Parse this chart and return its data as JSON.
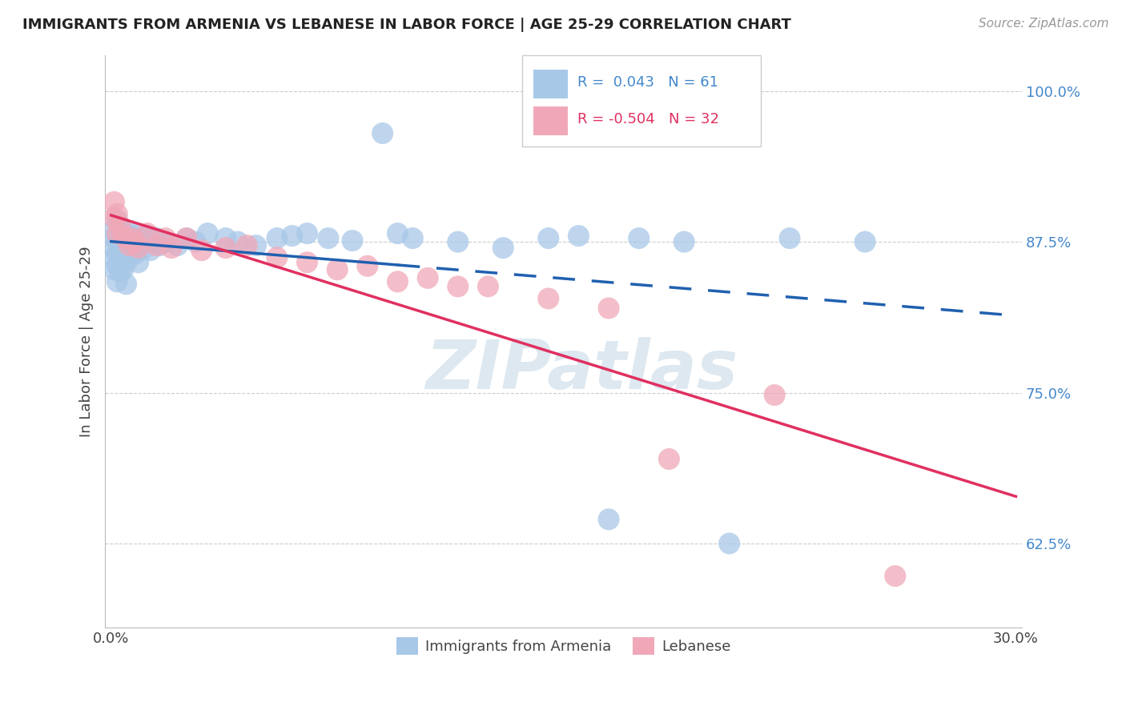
{
  "title": "IMMIGRANTS FROM ARMENIA VS LEBANESE IN LABOR FORCE | AGE 25-29 CORRELATION CHART",
  "source": "Source: ZipAtlas.com",
  "ylabel": "In Labor Force | Age 25-29",
  "yticks": [
    0.625,
    0.75,
    0.875,
    1.0
  ],
  "ytick_labels": [
    "62.5%",
    "75.0%",
    "87.5%",
    "100.0%"
  ],
  "xmin": 0.0,
  "xmax": 0.3,
  "ymin": 0.555,
  "ymax": 1.03,
  "armenia_R": 0.043,
  "armenia_N": 61,
  "lebanese_R": -0.504,
  "lebanese_N": 32,
  "armenia_color": "#a8c8e8",
  "armenia_line_color": "#2060b0",
  "lebanese_color": "#f0a8b8",
  "lebanese_line_color": "#e03060",
  "background_color": "#ffffff",
  "grid_color": "#cccccc",
  "title_color": "#222222",
  "axis_label_color": "#444444",
  "ytick_color": "#4488cc",
  "xtick_color": "#444444",
  "watermark_color": "#dde8f0",
  "armenia_x": [
    0.001,
    0.001,
    0.001,
    0.001,
    0.001,
    0.002,
    0.002,
    0.002,
    0.002,
    0.002,
    0.003,
    0.003,
    0.003,
    0.003,
    0.004,
    0.004,
    0.004,
    0.005,
    0.005,
    0.005,
    0.005,
    0.006,
    0.006,
    0.007,
    0.007,
    0.008,
    0.008,
    0.009,
    0.009,
    0.01,
    0.011,
    0.012,
    0.013,
    0.015,
    0.016,
    0.018,
    0.022,
    0.025,
    0.028,
    0.032,
    0.038,
    0.042,
    0.048,
    0.055,
    0.06,
    0.065,
    0.072,
    0.08,
    0.09,
    0.095,
    0.1,
    0.115,
    0.13,
    0.145,
    0.155,
    0.165,
    0.175,
    0.19,
    0.205,
    0.225,
    0.25
  ],
  "armenia_y": [
    0.885,
    0.878,
    0.87,
    0.862,
    0.852,
    0.893,
    0.878,
    0.865,
    0.855,
    0.842,
    0.888,
    0.875,
    0.862,
    0.85,
    0.878,
    0.865,
    0.852,
    0.882,
    0.87,
    0.858,
    0.84,
    0.878,
    0.862,
    0.88,
    0.865,
    0.882,
    0.865,
    0.875,
    0.858,
    0.878,
    0.87,
    0.88,
    0.868,
    0.878,
    0.872,
    0.875,
    0.872,
    0.878,
    0.875,
    0.882,
    0.878,
    0.875,
    0.872,
    0.878,
    0.88,
    0.882,
    0.878,
    0.876,
    0.965,
    0.882,
    0.878,
    0.875,
    0.87,
    0.878,
    0.88,
    0.645,
    0.878,
    0.875,
    0.625,
    0.878,
    0.875
  ],
  "lebanese_x": [
    0.001,
    0.001,
    0.002,
    0.002,
    0.003,
    0.004,
    0.005,
    0.006,
    0.007,
    0.008,
    0.009,
    0.012,
    0.015,
    0.018,
    0.02,
    0.025,
    0.03,
    0.038,
    0.045,
    0.055,
    0.065,
    0.075,
    0.085,
    0.095,
    0.105,
    0.115,
    0.125,
    0.145,
    0.165,
    0.185,
    0.22,
    0.26
  ],
  "lebanese_y": [
    0.908,
    0.895,
    0.898,
    0.882,
    0.888,
    0.88,
    0.878,
    0.872,
    0.878,
    0.875,
    0.87,
    0.882,
    0.872,
    0.878,
    0.87,
    0.878,
    0.868,
    0.87,
    0.872,
    0.862,
    0.858,
    0.852,
    0.855,
    0.842,
    0.845,
    0.838,
    0.838,
    0.828,
    0.82,
    0.695,
    0.748,
    0.598
  ]
}
